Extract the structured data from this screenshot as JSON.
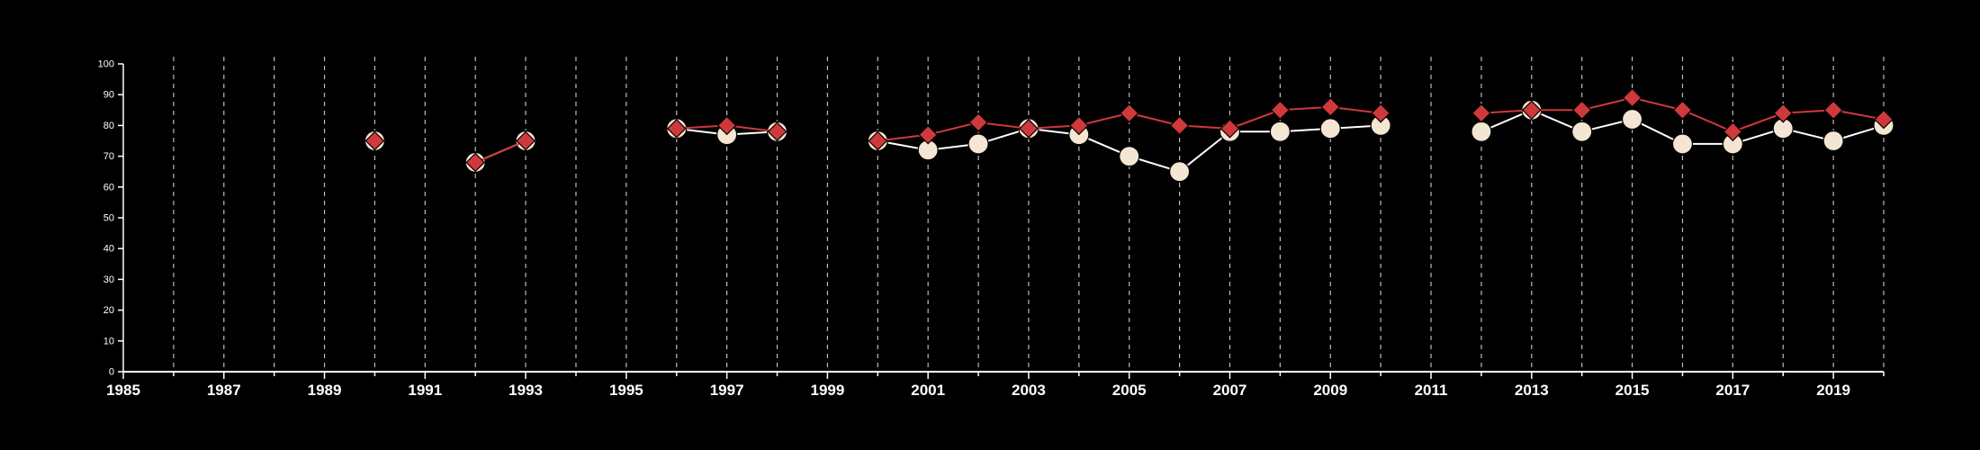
{
  "chart_data": {
    "type": "line",
    "title": "",
    "xlabel": "",
    "ylabel": "",
    "xlim": [
      1985,
      2020
    ],
    "ylim": [
      0,
      100
    ],
    "x_ticks": [
      1985,
      1987,
      1989,
      1991,
      1993,
      1995,
      1997,
      1999,
      2001,
      2003,
      2005,
      2007,
      2009,
      2011,
      2013,
      2015,
      2017,
      2019
    ],
    "y_ticks": [
      0,
      10,
      20,
      30,
      40,
      50,
      60,
      70,
      80,
      90,
      100
    ],
    "grid": "vertical dashed lines at every year",
    "background": "#000000",
    "series": [
      {
        "marker": "circle",
        "color": "#f5e6d3",
        "line_color": "#ffffff",
        "points": [
          [
            1990,
            75
          ],
          [
            1992,
            68
          ],
          [
            1993,
            75
          ],
          [
            1996,
            79
          ],
          [
            1997,
            77
          ],
          [
            1998,
            78
          ],
          [
            2000,
            75
          ],
          [
            2001,
            72
          ],
          [
            2002,
            74
          ],
          [
            2003,
            79
          ],
          [
            2004,
            77
          ],
          [
            2005,
            70
          ],
          [
            2006,
            65
          ],
          [
            2007,
            78
          ],
          [
            2008,
            78
          ],
          [
            2009,
            79
          ],
          [
            2010,
            80
          ],
          [
            2012,
            78
          ],
          [
            2013,
            85
          ],
          [
            2014,
            78
          ],
          [
            2015,
            82
          ],
          [
            2016,
            74
          ],
          [
            2017,
            74
          ],
          [
            2018,
            79
          ],
          [
            2019,
            75
          ],
          [
            2020,
            80
          ]
        ]
      },
      {
        "marker": "diamond",
        "color": "#d0393b",
        "line_color": "#d0393b",
        "points": [
          [
            1990,
            75
          ],
          [
            1992,
            68
          ],
          [
            1993,
            75
          ],
          [
            1996,
            79
          ],
          [
            1997,
            80
          ],
          [
            1998,
            78
          ],
          [
            2000,
            75
          ],
          [
            2001,
            77
          ],
          [
            2002,
            81
          ],
          [
            2003,
            79
          ],
          [
            2004,
            80
          ],
          [
            2005,
            84
          ],
          [
            2006,
            80
          ],
          [
            2007,
            79
          ],
          [
            2008,
            85
          ],
          [
            2009,
            86
          ],
          [
            2010,
            84
          ],
          [
            2012,
            84
          ],
          [
            2013,
            85
          ],
          [
            2014,
            85
          ],
          [
            2015,
            89
          ],
          [
            2016,
            85
          ],
          [
            2017,
            78
          ],
          [
            2018,
            84
          ],
          [
            2019,
            85
          ],
          [
            2020,
            82
          ]
        ]
      }
    ]
  }
}
